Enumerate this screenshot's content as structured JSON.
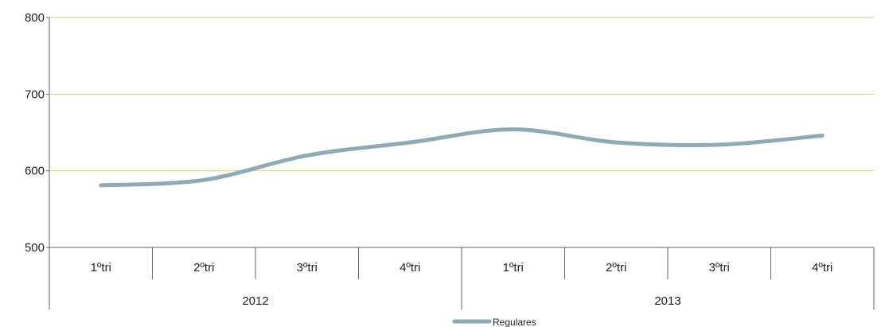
{
  "chart_data": {
    "type": "line",
    "title": "",
    "xlabel": "",
    "ylabel": "",
    "ylim": [
      500,
      800
    ],
    "yticks": [
      500,
      600,
      700,
      800
    ],
    "grid": true,
    "legend_position": "bottom",
    "groups": [
      {
        "label": "2012",
        "categories": [
          "1ºtri",
          "2ºtri",
          "3ºtri",
          "4ºtri"
        ]
      },
      {
        "label": "2013",
        "categories": [
          "1ºtri",
          "2ºtri",
          "3ºtri",
          "4ºtri"
        ]
      }
    ],
    "series": [
      {
        "name": "Regulares",
        "color": "#8FAAB6",
        "values": [
          581,
          588,
          620,
          637,
          654,
          637,
          634,
          646
        ]
      }
    ],
    "colors": {
      "gridline": "#D9C79A",
      "axis": "#666666"
    }
  }
}
